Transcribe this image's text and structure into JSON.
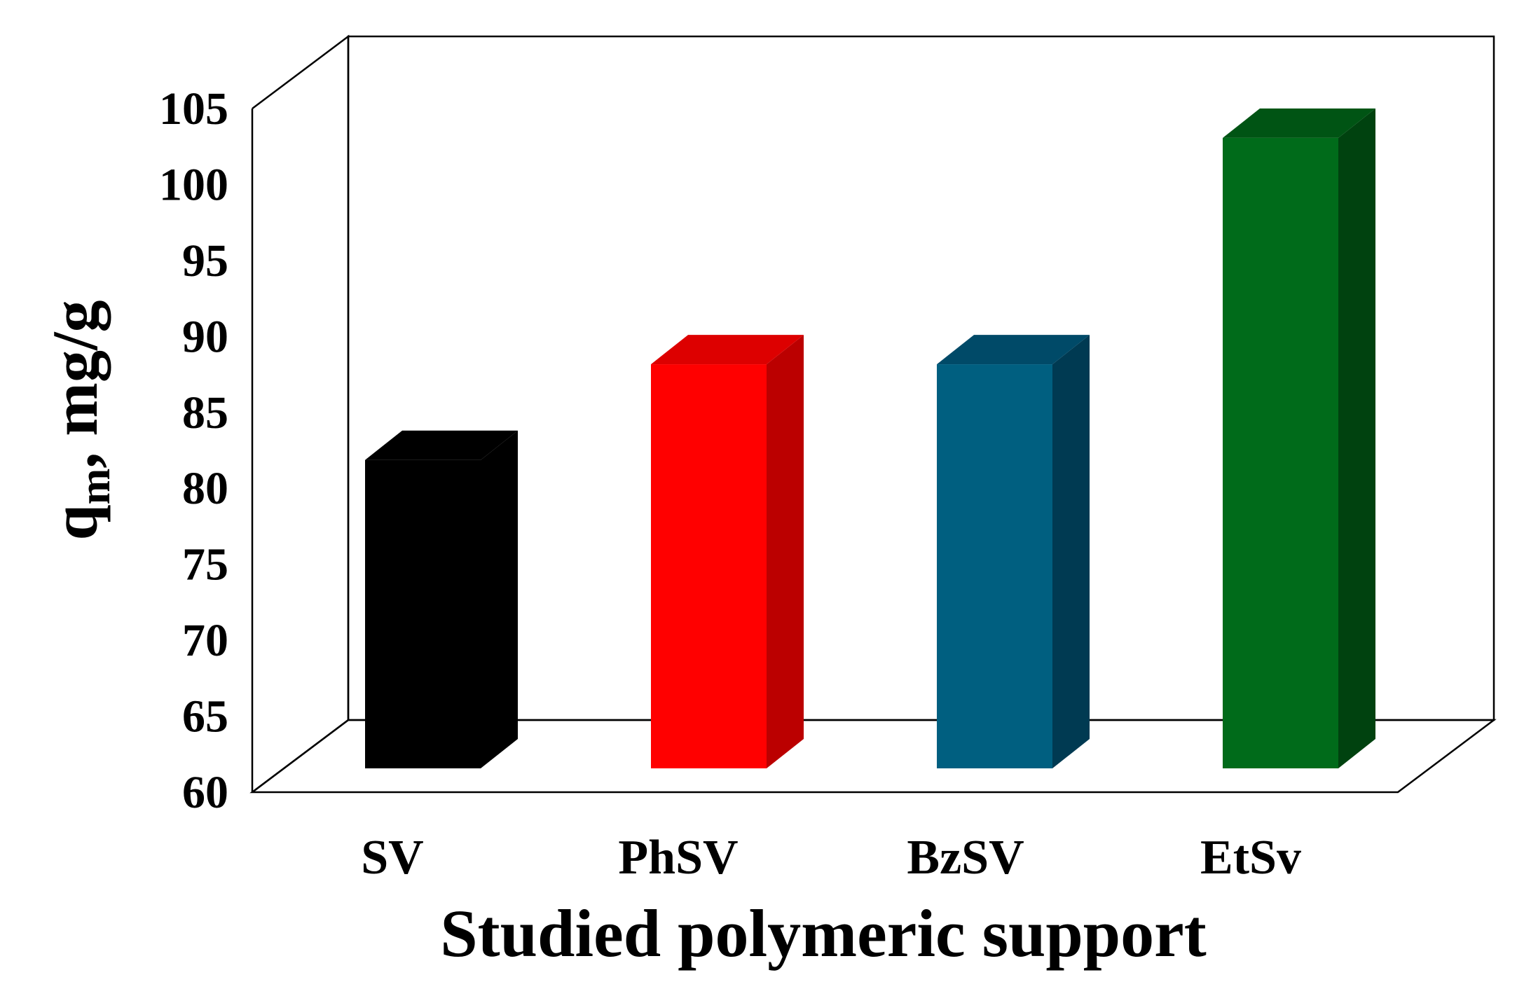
{
  "chart_data": {
    "type": "bar",
    "style": "3d",
    "categories": [
      "SV",
      "PhSV",
      "BzSV",
      "EtSv"
    ],
    "values": [
      80.3,
      86.6,
      86.6,
      101.5
    ],
    "ylabel": {
      "main": "q",
      "subscript": "m",
      "suffix": ", mg/g"
    },
    "xlabel": "Studied polymeric support",
    "ylim": [
      60,
      105
    ],
    "yticks": [
      "60",
      "65",
      "70",
      "75",
      "80",
      "85",
      "90",
      "95",
      "100",
      "105"
    ],
    "grid": false,
    "legend": "none",
    "colors": [
      {
        "front": "#000000",
        "side": "#000000",
        "top": "#000000"
      },
      {
        "front": "#ff0000",
        "side": "#bb0000",
        "top": "#dd0000"
      },
      {
        "front": "#005f80",
        "side": "#003a52",
        "top": "#004a68"
      },
      {
        "front": "#006b1a",
        "side": "#00420f",
        "top": "#005414"
      }
    ]
  }
}
